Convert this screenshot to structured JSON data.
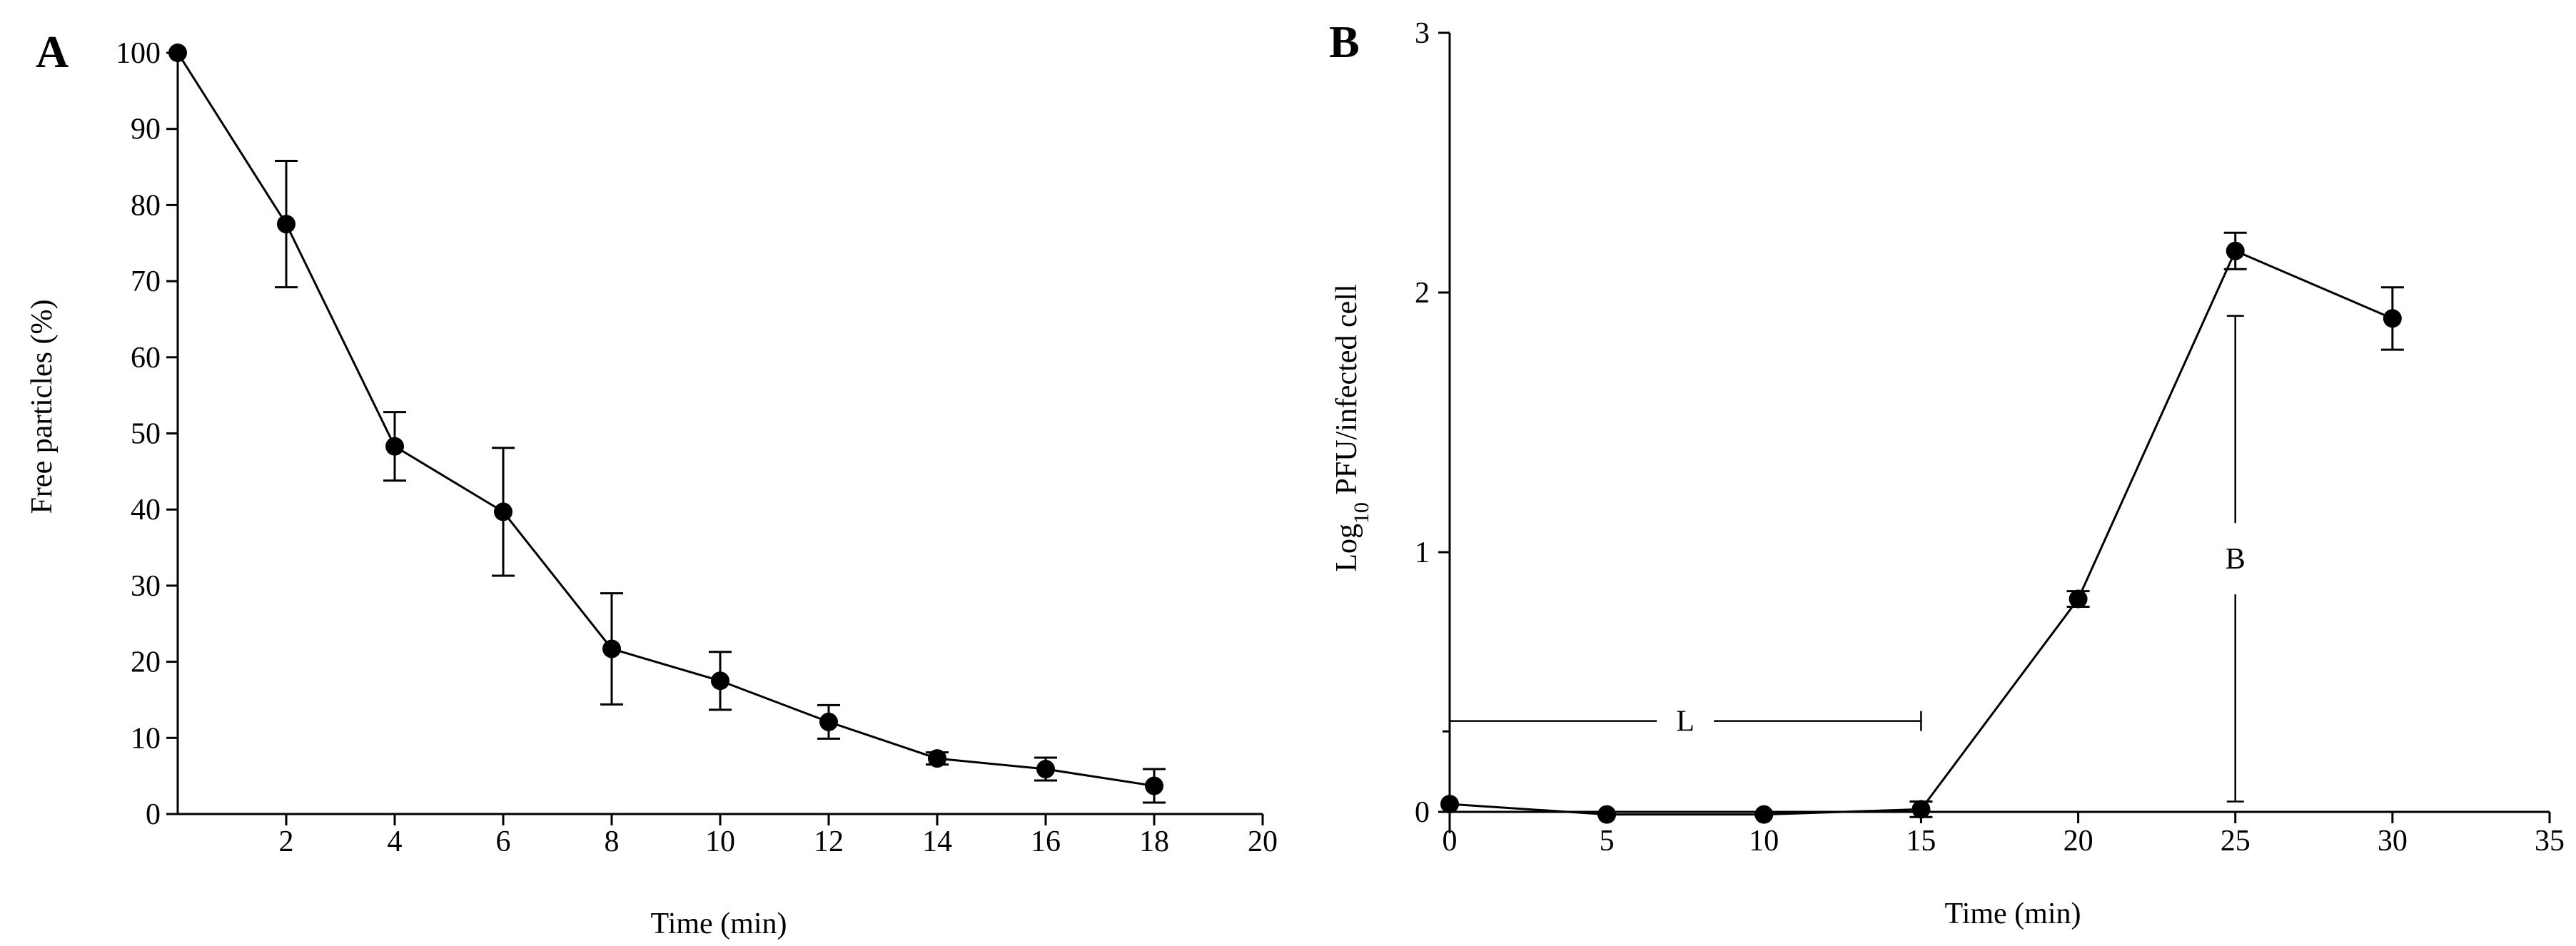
{
  "chart_data": [
    {
      "type": "line",
      "panel_label": "A",
      "xlabel": "Time (min)",
      "ylabel": "Free particles (%)",
      "xlim": [
        0,
        20
      ],
      "ylim": [
        0,
        100
      ],
      "x_ticks": [
        2,
        4,
        6,
        8,
        10,
        12,
        14,
        16,
        18,
        20
      ],
      "y_ticks": [
        0,
        10,
        20,
        30,
        40,
        50,
        60,
        70,
        80,
        90,
        100
      ],
      "grid": false,
      "legend": "none",
      "marker": "filled-circle",
      "line_color": "#000000",
      "series": [
        {
          "x": [
            0,
            2,
            4,
            6,
            8,
            10,
            12,
            14,
            16,
            18
          ],
          "y": [
            100,
            77.5,
            48.3,
            39.7,
            21.7,
            17.5,
            12.1,
            7.3,
            5.9,
            3.7
          ],
          "error": [
            0,
            8.3,
            4.5,
            8.4,
            7.3,
            3.8,
            2.2,
            0.8,
            1.5,
            2.2
          ]
        }
      ]
    },
    {
      "type": "line",
      "panel_label": "B",
      "xlabel": "Time (min)",
      "ylabel_main": "Log",
      "ylabel_sub": "10",
      "ylabel_rest": " PFU/infected cell",
      "xlim": [
        0,
        35
      ],
      "ylim": [
        0,
        3
      ],
      "x_ticks": [
        0,
        5,
        10,
        15,
        20,
        25,
        30,
        35
      ],
      "y_ticks": [
        0,
        1,
        2,
        3
      ],
      "grid": false,
      "legend": "none",
      "marker": "filled-circle",
      "line_color": "#000000",
      "series": [
        {
          "x": [
            0,
            5,
            10,
            15,
            20,
            25,
            30
          ],
          "y": [
            0.03,
            -0.01,
            -0.01,
            0.01,
            0.82,
            2.16,
            1.9
          ],
          "error": [
            0,
            0,
            0,
            0.03,
            0.03,
            0.07,
            0.12
          ]
        }
      ],
      "annotations": {
        "latent_label": "L",
        "latent_x": [
          0,
          15
        ],
        "latent_y": 0.35,
        "burst_label": "B",
        "burst_x": 25,
        "burst_y": [
          0.04,
          1.91
        ]
      }
    }
  ]
}
